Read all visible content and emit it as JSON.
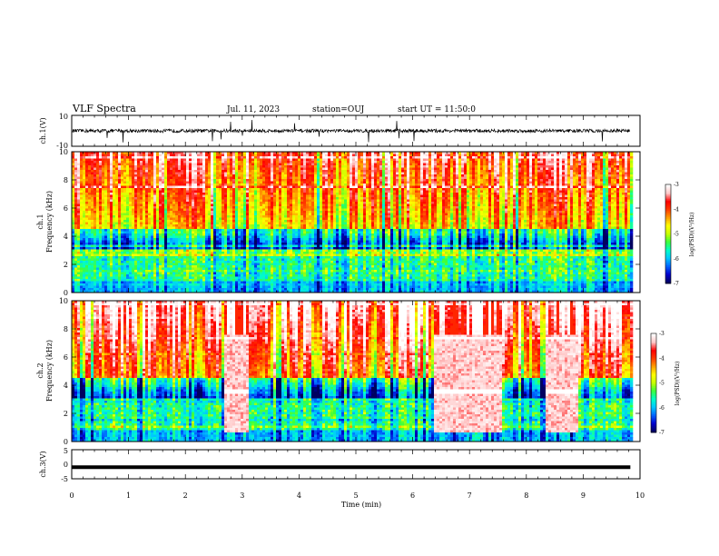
{
  "header": {
    "title": "VLF Spectra",
    "date": "Jul. 11, 2023",
    "station": "station=OUJ",
    "start": "start UT = 11:50:0"
  },
  "chart_data": [
    {
      "type": "line",
      "name": "ch1-waveform",
      "ylabel": "ch.1(V)",
      "ylim": [
        -10,
        10
      ],
      "yticks": [
        "10",
        "-10"
      ],
      "baseline": 0
    },
    {
      "type": "heatmap",
      "name": "ch1-spectrogram",
      "ylabel": "ch.1\nFrequency (kHz)",
      "ylim": [
        0,
        10
      ],
      "yticks": [
        "0",
        "2",
        "4",
        "6",
        "8",
        "10"
      ],
      "colorbar": {
        "label": "log(PSD)(V²/Hz)",
        "range": [
          -7,
          -3
        ],
        "ticks": [
          "-3",
          "-4",
          "-5",
          "-6",
          "-7"
        ]
      },
      "bursts": []
    },
    {
      "type": "heatmap",
      "name": "ch2-spectrogram",
      "ylabel": "ch.2\nFrequency (kHz)",
      "ylim": [
        0,
        10
      ],
      "yticks": [
        "0",
        "2",
        "4",
        "6",
        "8",
        "10"
      ],
      "colorbar": {
        "label": "log(PSD)(V²/Hz)",
        "range": [
          -7,
          -3
        ],
        "ticks": [
          "-3",
          "-4",
          "-5",
          "-6",
          "-7"
        ]
      },
      "bursts": [
        {
          "t0": 2.65,
          "t1": 3.1,
          "fmax": 7.6
        },
        {
          "t0": 6.35,
          "t1": 7.55,
          "fmax": 7.6
        },
        {
          "t0": 8.3,
          "t1": 8.9,
          "fmax": 7.6
        }
      ]
    },
    {
      "type": "line",
      "name": "ch3-waveform",
      "ylabel": "ch.3(V)",
      "ylim": [
        -5,
        5
      ],
      "yticks": [
        "5",
        "0",
        "-5"
      ],
      "baseline": -1
    }
  ],
  "xaxis": {
    "label": "Time (min)",
    "range": [
      0,
      10
    ],
    "ticks": [
      "0",
      "1",
      "2",
      "3",
      "4",
      "5",
      "6",
      "7",
      "8",
      "9",
      "10"
    ],
    "data_end": 9.83
  },
  "colors": {
    "colormap": [
      "#000060",
      "#0000cd",
      "#0064ff",
      "#00c8ff",
      "#00ffc8",
      "#3cff3c",
      "#c8ff00",
      "#ffff00",
      "#ffa000",
      "#ff3c00",
      "#ff0000",
      "#ffc8c8",
      "#ffffff"
    ]
  }
}
